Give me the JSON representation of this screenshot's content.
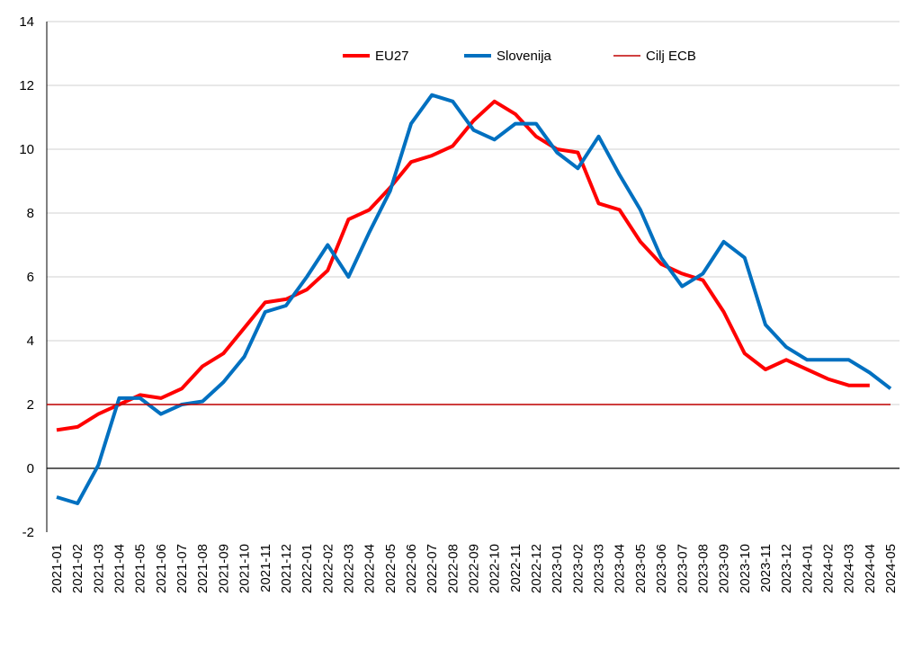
{
  "chart_data": {
    "type": "line",
    "title": "",
    "xlabel": "",
    "ylabel": "",
    "ylim": [
      -2,
      14
    ],
    "yticks": [
      -2,
      0,
      2,
      4,
      6,
      8,
      10,
      12,
      14
    ],
    "grid": "horizontal",
    "legend_position": "top-center",
    "categories": [
      "2021-01",
      "2021-02",
      "2021-03",
      "2021-04",
      "2021-05",
      "2021-06",
      "2021-07",
      "2021-08",
      "2021-09",
      "2021-10",
      "2021-11",
      "2021-12",
      "2022-01",
      "2022-02",
      "2022-03",
      "2022-04",
      "2022-05",
      "2022-06",
      "2022-07",
      "2022-08",
      "2022-09",
      "2022-10",
      "2022-11",
      "2022-12",
      "2023-01",
      "2023-02",
      "2023-03",
      "2023-04",
      "2023-05",
      "2023-06",
      "2023-07",
      "2023-08",
      "2023-09",
      "2023-10",
      "2023-11",
      "2023-12",
      "2024-01",
      "2024-02",
      "2024-03",
      "2024-04",
      "2024-05"
    ],
    "series": [
      {
        "name": "EU27",
        "color": "#ff0000",
        "values": [
          1.2,
          1.3,
          1.7,
          2.0,
          2.3,
          2.2,
          2.5,
          3.2,
          3.6,
          4.4,
          5.2,
          5.3,
          5.6,
          6.2,
          7.8,
          8.1,
          8.8,
          9.6,
          9.8,
          10.1,
          10.9,
          11.5,
          11.1,
          10.4,
          10.0,
          9.9,
          8.3,
          8.1,
          7.1,
          6.4,
          6.1,
          5.9,
          4.9,
          3.6,
          3.1,
          3.4,
          3.1,
          2.8,
          2.6,
          2.6,
          null
        ]
      },
      {
        "name": "Slovenija",
        "color": "#0070c0",
        "values": [
          -0.9,
          -1.1,
          0.1,
          2.2,
          2.2,
          1.7,
          2.0,
          2.1,
          2.7,
          3.5,
          4.9,
          5.1,
          6.0,
          7.0,
          6.0,
          7.4,
          8.7,
          10.8,
          11.7,
          11.5,
          10.6,
          10.3,
          10.8,
          10.8,
          9.9,
          9.4,
          10.4,
          9.2,
          8.1,
          6.6,
          5.7,
          6.1,
          7.1,
          6.6,
          4.5,
          3.8,
          3.4,
          3.4,
          3.4,
          3.0,
          2.5
        ]
      },
      {
        "name": "Cilj ECB",
        "color": "#c00000",
        "constant": 2
      }
    ]
  }
}
